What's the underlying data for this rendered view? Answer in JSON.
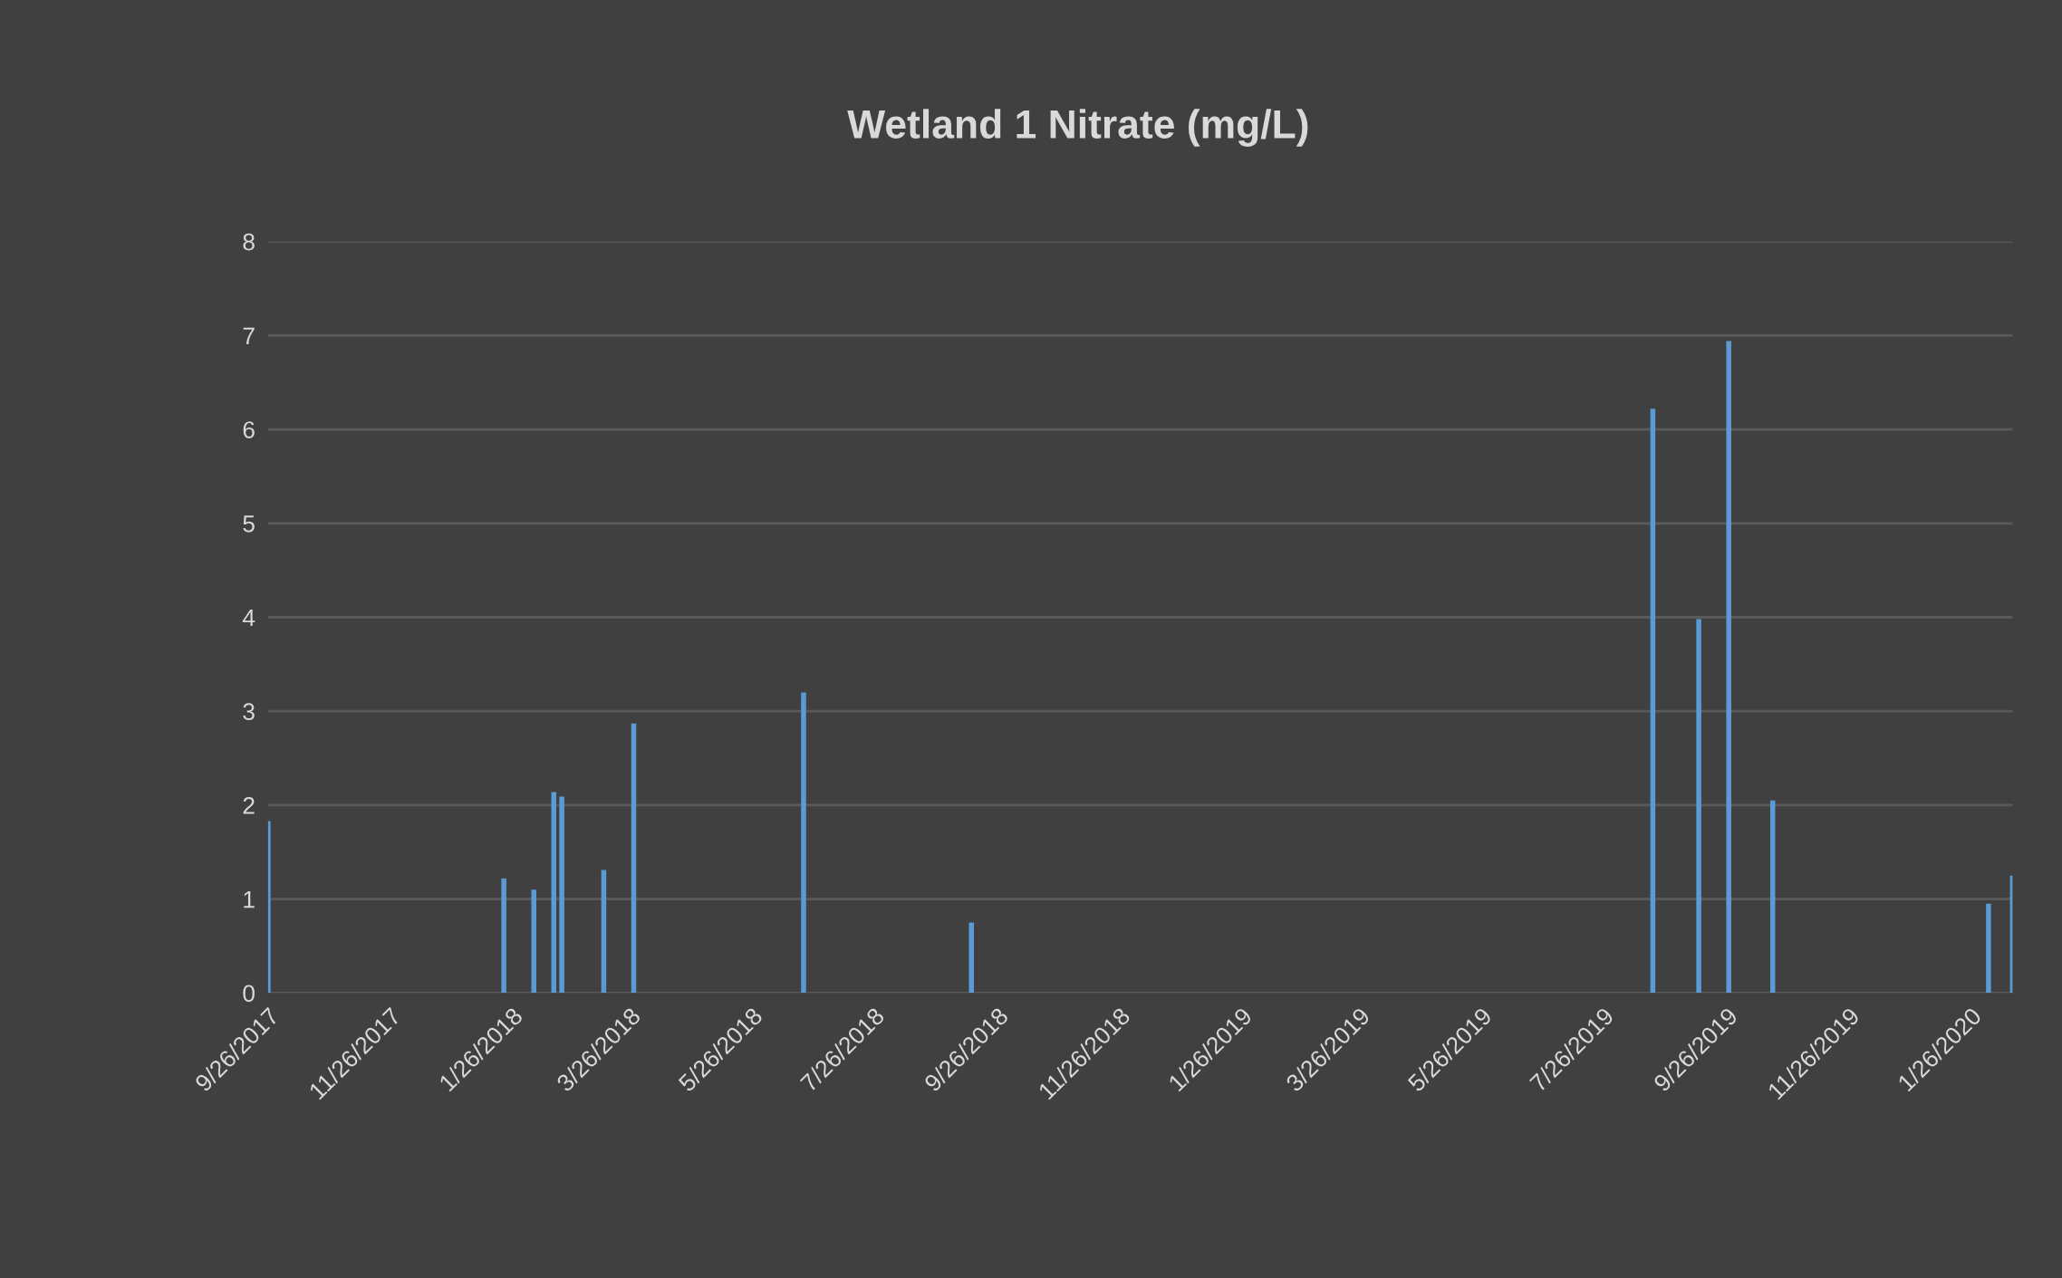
{
  "chart_data": {
    "type": "bar",
    "title": "Wetland 1 Nitrate (mg/L)",
    "color": "#5b9bd5",
    "x": [
      "2017-09-26",
      "2018-01-22",
      "2018-02-06",
      "2018-02-16",
      "2018-02-20",
      "2018-03-13",
      "2018-03-28",
      "2018-06-21",
      "2018-09-13",
      "2019-08-20",
      "2019-09-12",
      "2019-09-27",
      "2019-10-19",
      "2020-02-04",
      "2020-02-16"
    ],
    "values": [
      1.83,
      1.22,
      1.1,
      2.14,
      2.09,
      1.31,
      2.87,
      3.2,
      0.75,
      6.22,
      3.98,
      6.94,
      2.05,
      0.95,
      1.25
    ],
    "xlim": [
      "2017-09-26",
      "2020-02-16"
    ],
    "xticks": [
      {
        "value": "2017-09-26",
        "label": "9/26/2017"
      },
      {
        "value": "2017-11-26",
        "label": "11/26/2017"
      },
      {
        "value": "2018-01-26",
        "label": "1/26/2018"
      },
      {
        "value": "2018-03-26",
        "label": "3/26/2018"
      },
      {
        "value": "2018-05-26",
        "label": "5/26/2018"
      },
      {
        "value": "2018-07-26",
        "label": "7/26/2018"
      },
      {
        "value": "2018-09-26",
        "label": "9/26/2018"
      },
      {
        "value": "2018-11-26",
        "label": "11/26/2018"
      },
      {
        "value": "2019-01-26",
        "label": "1/26/2019"
      },
      {
        "value": "2019-03-26",
        "label": "3/26/2019"
      },
      {
        "value": "2019-05-26",
        "label": "5/26/2019"
      },
      {
        "value": "2019-07-26",
        "label": "7/26/2019"
      },
      {
        "value": "2019-09-26",
        "label": "9/26/2019"
      },
      {
        "value": "2019-11-26",
        "label": "11/26/2019"
      },
      {
        "value": "2020-01-26",
        "label": "1/26/2020"
      }
    ],
    "ylim": [
      0,
      8
    ],
    "yticks": [
      0,
      1,
      2,
      3,
      4,
      5,
      6,
      7,
      8
    ],
    "grid": "y",
    "legend": false
  }
}
